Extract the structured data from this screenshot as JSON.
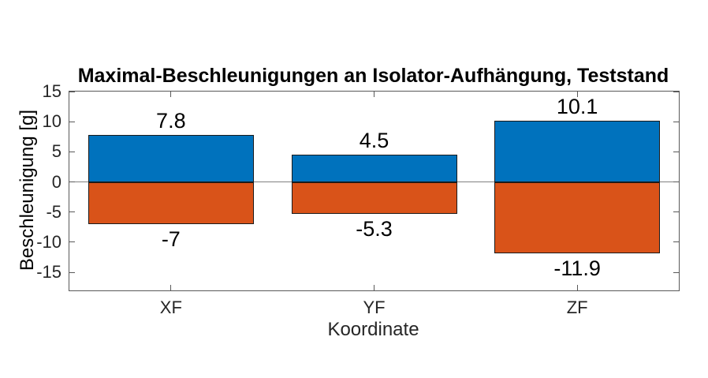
{
  "chart_data": {
    "type": "bar",
    "title": "Maximal-Beschleunigungen an Isolator-Aufhängung, Teststand",
    "xlabel": "Koordinate",
    "ylabel": "Beschleunigung [g]",
    "categories": [
      "XF",
      "YF",
      "ZF"
    ],
    "series": [
      {
        "id": "positive",
        "color": "#0072BD",
        "values": [
          7.8,
          4.5,
          10.1
        ],
        "data_labels": [
          "7.8",
          "4.5",
          "10.1"
        ]
      },
      {
        "id": "negative",
        "color": "#D95319",
        "values": [
          -7,
          -5.3,
          -11.9
        ],
        "data_labels": [
          "-7",
          "-5.3",
          "-11.9"
        ]
      }
    ],
    "yticks": [
      15,
      10,
      5,
      0,
      -5,
      -10,
      -15
    ],
    "ytick_labels": [
      "15",
      "10",
      "5",
      "0",
      "-5",
      "-10",
      "-15"
    ],
    "ylim": [
      -18,
      15
    ],
    "grid": false,
    "legend": null,
    "background_color": "#ffffff",
    "bar_edge_color": "#1a1a1a",
    "zero_line_color": "#808080",
    "axis_color": "#595959",
    "tick_label_color": "#262626",
    "title_color": "#000000"
  }
}
